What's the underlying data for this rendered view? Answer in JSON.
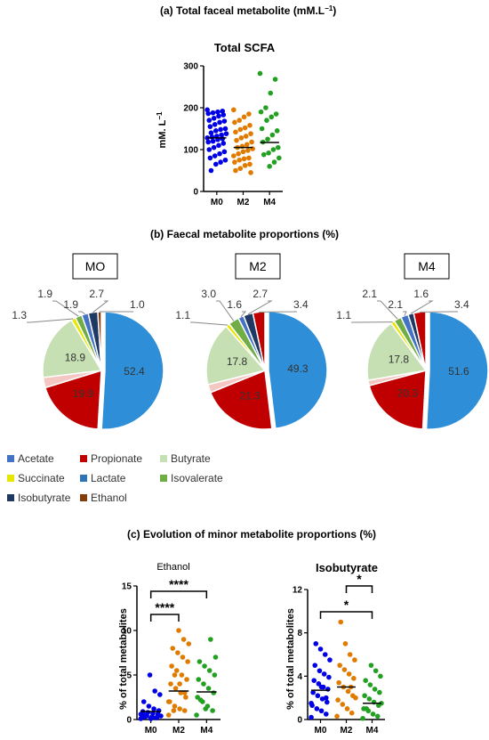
{
  "titles": {
    "a": "(a) Total faceal metabolite (mM.L",
    "a_sup": "−1",
    "a_close": ")",
    "b": "(b) Faecal metabolite proportions (%)",
    "c": "(c) Evolution of minor metabolite proportions (%)"
  },
  "legend": {
    "items": [
      {
        "label": "Acetate",
        "color": "#4472c4"
      },
      {
        "label": "Propionate",
        "color": "#c00000"
      },
      {
        "label": "Butyrate",
        "color": "#c6e0b4"
      },
      {
        "label": "Succinate",
        "color": "#e6e600"
      },
      {
        "label": "Lactate",
        "color": "#2e75b6"
      },
      {
        "label": "Isovalerate",
        "color": "#70ad47"
      },
      {
        "label": "Isobutyrate",
        "color": "#203864"
      },
      {
        "label": "Ethanol",
        "color": "#843c0c"
      }
    ]
  },
  "chart_data": [
    {
      "type": "scatter",
      "title": "Total SCFA",
      "ylabel": "mM. L",
      "ylabel_sup": "−1",
      "categories": [
        "M0",
        "M2",
        "M4"
      ],
      "ylim": [
        0,
        300
      ],
      "yticks": [
        "0",
        "100",
        "200",
        "300"
      ],
      "colors": [
        "#0000e6",
        "#e07b00",
        "#22a022"
      ],
      "medians": [
        128,
        105,
        117
      ],
      "series": [
        {
          "values": [
            195,
            192,
            190,
            188,
            186,
            183,
            180,
            175,
            170,
            168,
            165,
            160,
            155,
            150,
            148,
            145,
            140,
            138,
            135,
            132,
            130,
            128,
            126,
            124,
            120,
            118,
            115,
            110,
            105,
            100,
            95,
            90,
            85,
            80,
            75,
            70,
            65,
            50
          ]
        },
        {
          "values": [
            195,
            185,
            178,
            170,
            165,
            158,
            152,
            148,
            142,
            138,
            132,
            128,
            122,
            118,
            112,
            108,
            105,
            102,
            98,
            95,
            90,
            85,
            80,
            78,
            75,
            70,
            65,
            62,
            55,
            50,
            45
          ]
        },
        {
          "values": [
            282,
            268,
            235,
            200,
            190,
            185,
            178,
            170,
            150,
            145,
            135,
            125,
            118,
            105,
            100,
            92,
            88,
            80,
            70,
            60
          ]
        }
      ]
    },
    {
      "type": "pie",
      "title": "MO",
      "slices": [
        {
          "label": "52.4",
          "value": 52.4,
          "color": "#2e8fd8",
          "name": "Lactate"
        },
        {
          "label": "19.9",
          "value": 19.9,
          "color": "#c00000",
          "name": "Propionate"
        },
        {
          "label": "",
          "value": 2.9,
          "color": "#f4c7c3",
          "name": "other"
        },
        {
          "label": "18.9",
          "value": 18.9,
          "color": "#c6e0b4",
          "name": "Butyrate"
        },
        {
          "label": "1.3",
          "value": 1.3,
          "color": "#e6e600",
          "name": "Succinate"
        },
        {
          "label": "1.9",
          "value": 1.9,
          "color": "#70ad47",
          "name": "Isovalerate"
        },
        {
          "label": "1.9",
          "value": 1.9,
          "color": "#4472c4",
          "name": "Acetate"
        },
        {
          "label": "2.7",
          "value": 2.7,
          "color": "#203864",
          "name": "Isobutyrate"
        },
        {
          "label": "1.0",
          "value": 1.0,
          "color": "#843c0c",
          "name": "Ethanol"
        }
      ]
    },
    {
      "type": "pie",
      "title": "M2",
      "slices": [
        {
          "label": "49.3",
          "value": 49.3,
          "color": "#2e8fd8",
          "name": "Lactate"
        },
        {
          "label": "21.3",
          "value": 21.3,
          "color": "#c00000",
          "name": "Propionate"
        },
        {
          "label": "",
          "value": 2.3,
          "color": "#f4c7c3",
          "name": "other"
        },
        {
          "label": "17.8",
          "value": 17.8,
          "color": "#c6e0b4",
          "name": "Butyrate"
        },
        {
          "label": "1.1",
          "value": 1.1,
          "color": "#e6e600",
          "name": "Succinate"
        },
        {
          "label": "3.0",
          "value": 3.0,
          "color": "#70ad47",
          "name": "Isovalerate"
        },
        {
          "label": "1.6",
          "value": 1.6,
          "color": "#4472c4",
          "name": "Acetate"
        },
        {
          "label": "2.7",
          "value": 2.7,
          "color": "#203864",
          "name": "Isobutyrate"
        },
        {
          "label": "3.4",
          "value": 3.4,
          "color": "#c00000",
          "name": "Ethanol"
        }
      ]
    },
    {
      "type": "pie",
      "title": "M4",
      "slices": [
        {
          "label": "51.6",
          "value": 51.6,
          "color": "#2e8fd8",
          "name": "Lactate"
        },
        {
          "label": "20.3",
          "value": 20.3,
          "color": "#c00000",
          "name": "Propionate"
        },
        {
          "label": "",
          "value": 1.5,
          "color": "#f4c7c3",
          "name": "other"
        },
        {
          "label": "17.8",
          "value": 17.8,
          "color": "#c6e0b4",
          "name": "Butyrate"
        },
        {
          "label": "1.1",
          "value": 1.1,
          "color": "#e6e600",
          "name": "Succinate"
        },
        {
          "label": "2.1",
          "value": 2.1,
          "color": "#70ad47",
          "name": "Isovalerate"
        },
        {
          "label": "2.1",
          "value": 2.1,
          "color": "#4472c4",
          "name": "Acetate"
        },
        {
          "label": "1.6",
          "value": 1.6,
          "color": "#203864",
          "name": "Isobutyrate"
        },
        {
          "label": "3.4",
          "value": 3.4,
          "color": "#c00000",
          "name": "Ethanol"
        }
      ]
    },
    {
      "type": "scatter",
      "title": "Ethanol",
      "ylabel": "% of total metabolites",
      "categories": [
        "M0",
        "M2",
        "M4"
      ],
      "ylim": [
        0,
        15
      ],
      "yticks": [
        "0",
        "5",
        "10",
        "15"
      ],
      "colors": [
        "#0000e6",
        "#e07b00",
        "#22a022"
      ],
      "medians": [
        0.9,
        3.2,
        3.1
      ],
      "significance": [
        "****",
        "****"
      ],
      "series": [
        {
          "values": [
            0.1,
            0.2,
            0.3,
            0.4,
            0.5,
            0.6,
            0.7,
            0.8,
            0.9,
            1.0,
            1.2,
            1.5,
            2.0,
            2.8,
            3.2,
            5.0,
            0.3,
            0.4,
            0.2,
            0.1,
            0.5,
            0.6
          ]
        },
        {
          "values": [
            0.5,
            1.0,
            1.2,
            1.5,
            2.0,
            2.5,
            3.0,
            3.5,
            4.0,
            4.5,
            5.0,
            5.5,
            6.0,
            6.5,
            7.0,
            7.5,
            8.0,
            8.5,
            9.0,
            10.0,
            1.0,
            2.0,
            3.0,
            4.0,
            5.0
          ]
        },
        {
          "values": [
            0.5,
            1.0,
            1.5,
            2.0,
            2.5,
            3.0,
            3.5,
            4.0,
            4.5,
            5.0,
            5.5,
            6.0,
            6.5,
            7.0,
            9.0,
            1.2,
            2.2
          ]
        }
      ]
    },
    {
      "type": "scatter",
      "title": "Isobutyrate",
      "ylabel": "% of total metabolites",
      "categories": [
        "M0",
        "M2",
        "M4"
      ],
      "ylim": [
        0,
        12
      ],
      "yticks": [
        "0",
        "4",
        "8",
        "12"
      ],
      "colors": [
        "#0000e6",
        "#e07b00",
        "#22a022"
      ],
      "medians": [
        2.7,
        3.0,
        1.5
      ],
      "significance": [
        "*",
        "*"
      ],
      "series": [
        {
          "values": [
            0.2,
            0.5,
            0.8,
            1.0,
            1.3,
            1.6,
            1.9,
            2.2,
            2.5,
            2.8,
            3.0,
            3.3,
            3.6,
            3.9,
            4.2,
            4.5,
            5.0,
            5.5,
            6.0,
            6.5,
            7.0,
            1.5,
            2.0,
            3.0
          ]
        },
        {
          "values": [
            0.3,
            0.6,
            1.0,
            1.4,
            1.8,
            2.2,
            2.6,
            3.0,
            3.4,
            3.8,
            4.2,
            4.6,
            5.0,
            5.5,
            6.0,
            7.0,
            9.0,
            2.0,
            3.0
          ]
        },
        {
          "values": [
            0.1,
            0.3,
            0.5,
            0.8,
            1.0,
            1.3,
            1.6,
            1.9,
            2.2,
            2.5,
            2.8,
            3.2,
            3.6,
            4.0,
            4.5,
            5.0,
            1.0,
            1.5
          ]
        }
      ]
    }
  ]
}
